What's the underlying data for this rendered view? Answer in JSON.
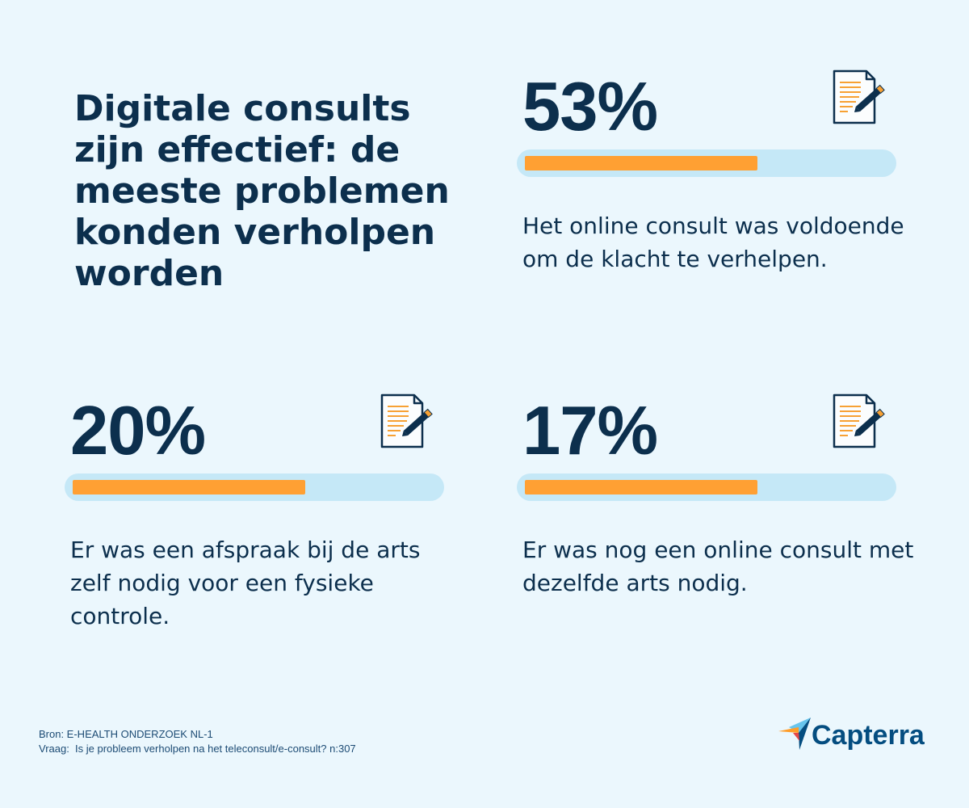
{
  "colors": {
    "background": "#ebf7fd",
    "ink": "#0c2f4d",
    "accent": "#ffa033",
    "track": "#c5e8f7",
    "brand": "#044d80"
  },
  "chart_data": {
    "type": "bar",
    "title": "Digitale consults zijn effectief: de meeste problemen konden verholpen worden",
    "categories": [
      "Het online consult was voldoende om de klacht te verhelpen.",
      "Er was een afspraak bij de arts zelf nodig voor een fysieke controle.",
      "Er was nog een online consult met dezelfde arts nodig."
    ],
    "values": [
      53,
      20,
      17
    ],
    "value_labels": [
      "53%",
      "20%",
      "17%"
    ],
    "bar_fill_percent": [
      64,
      64,
      64
    ],
    "ylim": [
      0,
      100
    ],
    "icon": "document-pencil-icon"
  },
  "footer": {
    "source": "Bron: E-HEALTH ONDERZOEK NL-1",
    "question": "Vraag:  Is je probleem verholpen na het teleconsult/e-consult? n:307"
  },
  "brand": {
    "name": "Capterra",
    "logo_icon": "capterra-arrow-icon"
  }
}
